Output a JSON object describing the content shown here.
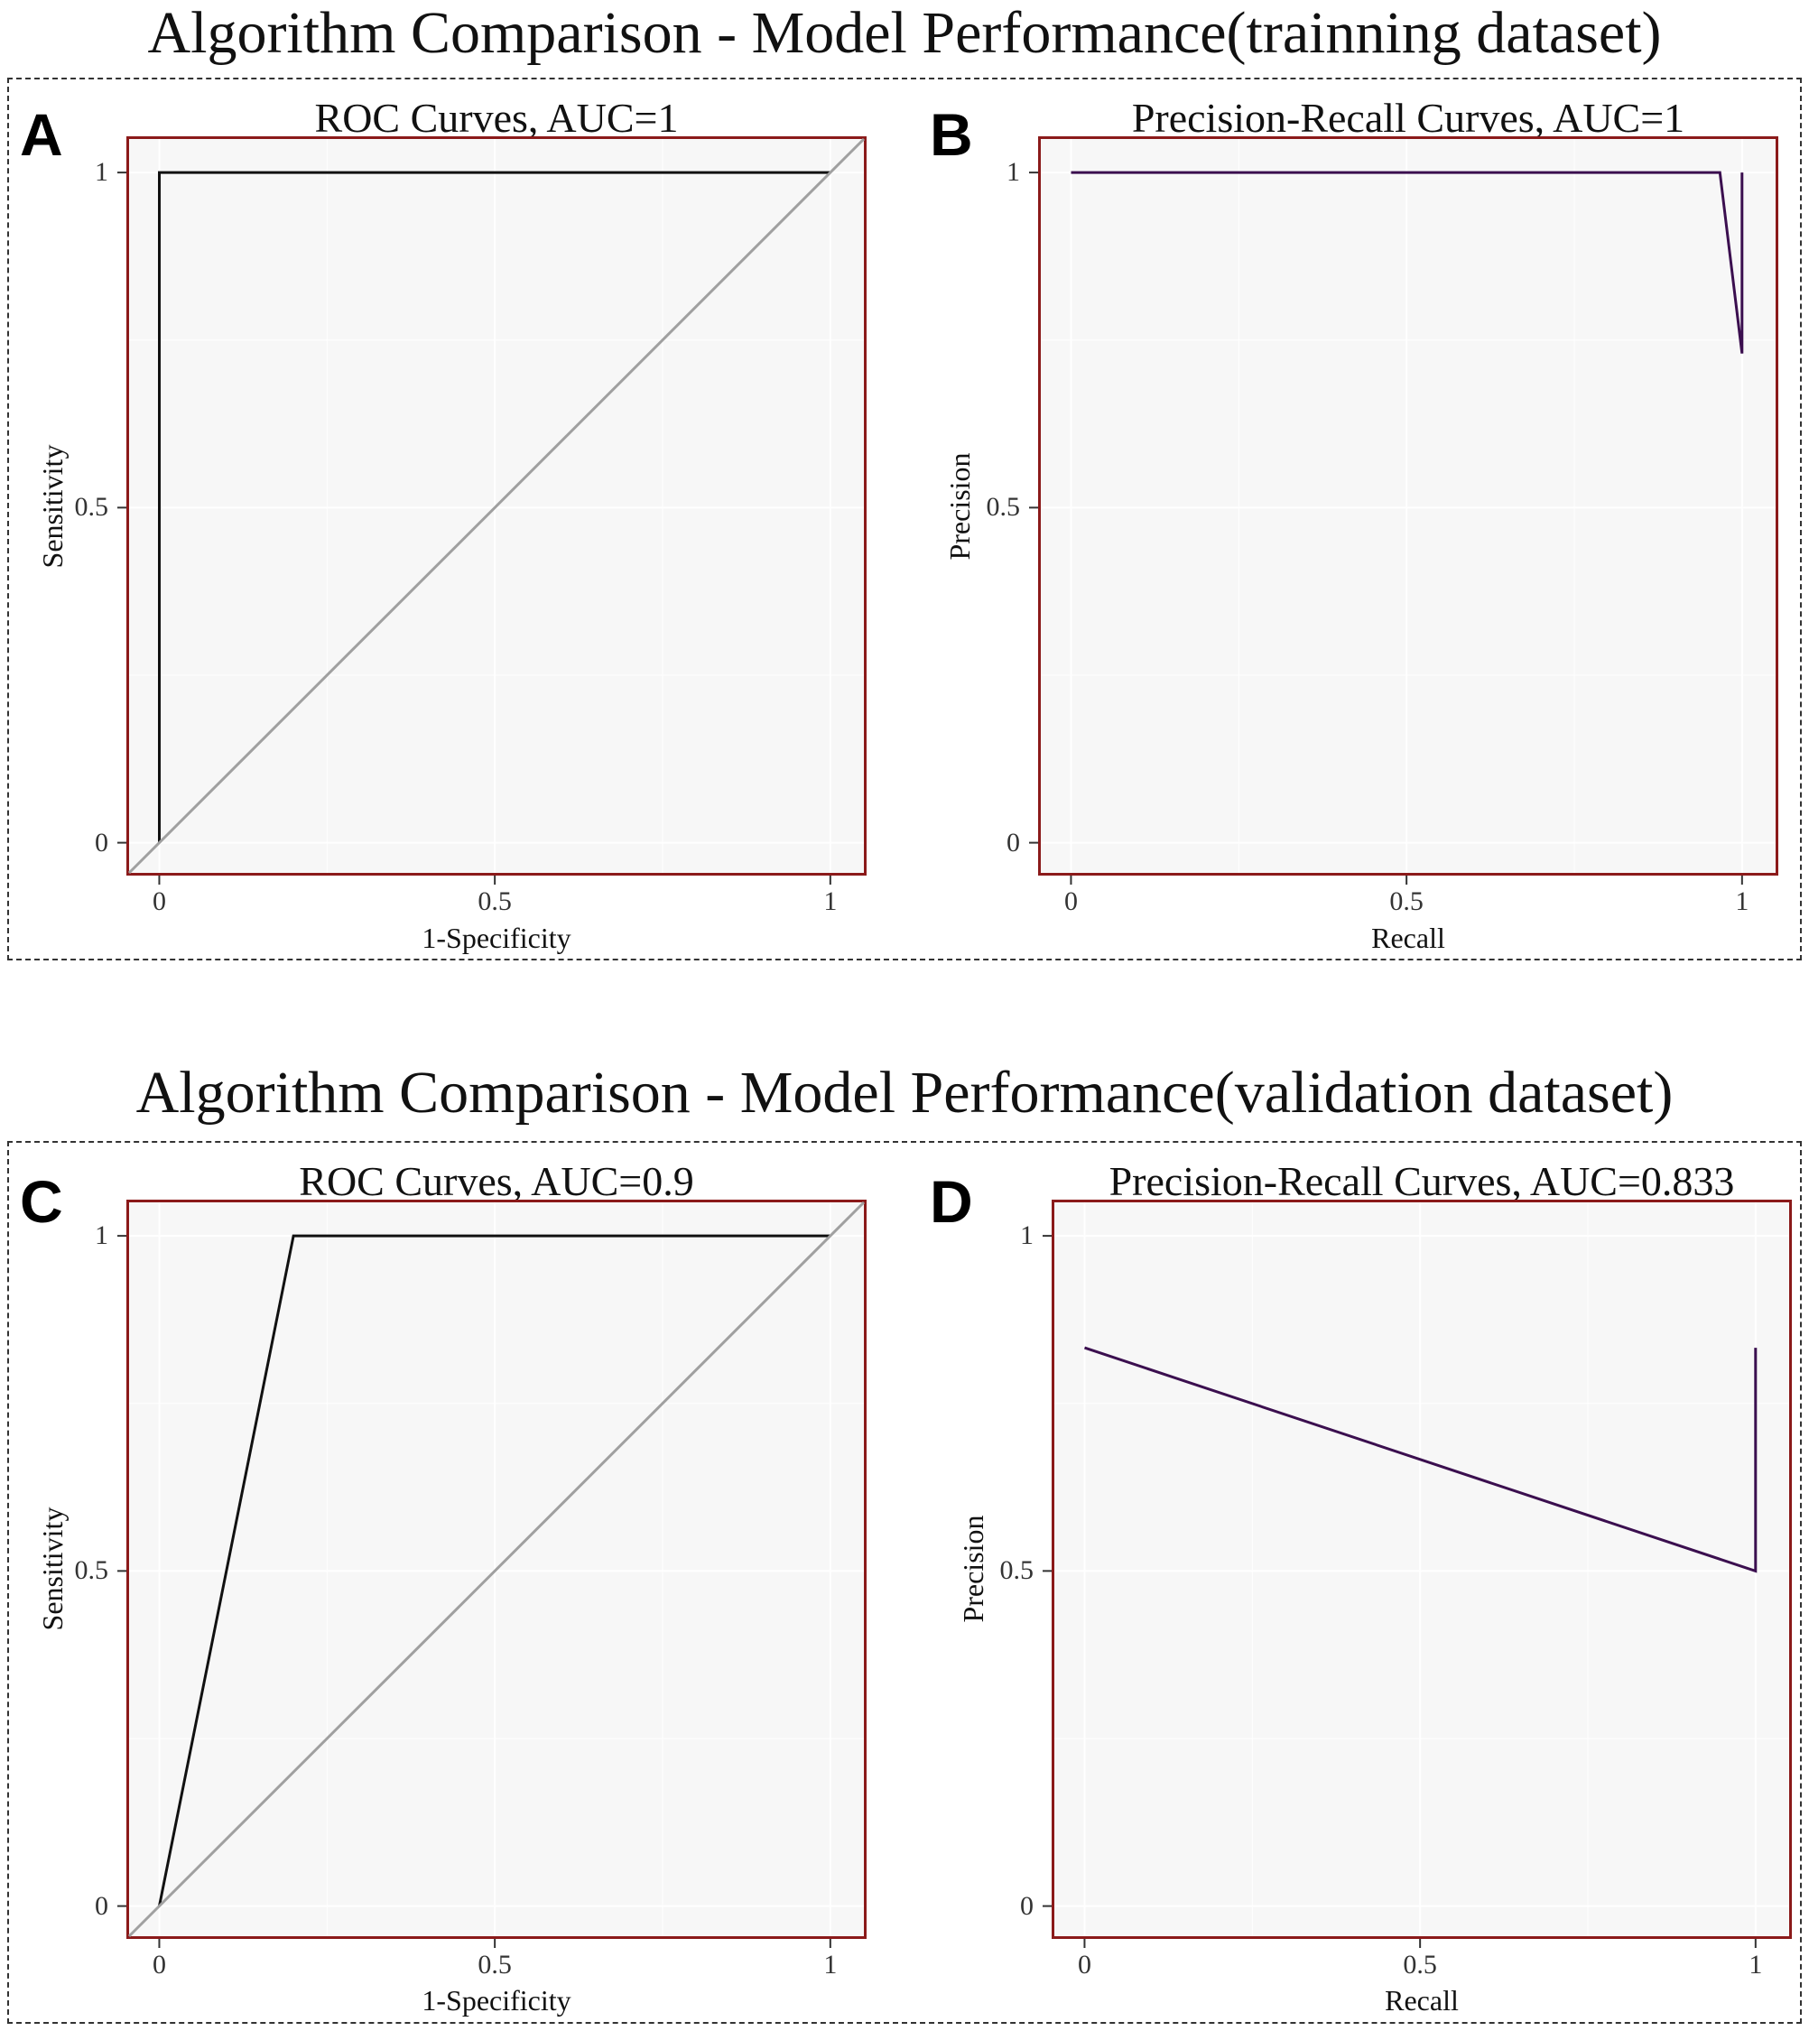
{
  "sections": [
    {
      "title": "Algorithm Comparison - Model Performance(trainning dataset)"
    },
    {
      "title": "Algorithm Comparison - Model Performance(validation dataset)"
    }
  ],
  "chart_data": [
    {
      "panel": "A",
      "type": "line",
      "title": "ROC Curves, AUC=1",
      "xlabel": "1-Specificity",
      "ylabel": "Sensitivity",
      "xlim": [
        -0.045,
        1.05
      ],
      "ylim": [
        -0.045,
        1.05
      ],
      "xticks": [
        "0",
        "0.5",
        "1"
      ],
      "yticks": [
        "0",
        "0.5",
        "1"
      ],
      "series": [
        {
          "color": "#111111",
          "x": [
            0,
            0,
            1
          ],
          "y": [
            0,
            1,
            1
          ]
        },
        {
          "color": "#a0a0a0",
          "x": [
            -0.045,
            1.05
          ],
          "y": [
            -0.045,
            1.05
          ]
        }
      ]
    },
    {
      "panel": "B",
      "type": "line",
      "title": "Precision-Recall Curves, AUC=1",
      "xlabel": "Recall",
      "ylabel": "Precision",
      "xlim": [
        -0.045,
        1.05
      ],
      "ylim": [
        -0.045,
        1.05
      ],
      "xticks": [
        "0",
        "0.5",
        "1"
      ],
      "yticks": [
        "0",
        "0.5",
        "1"
      ],
      "series": [
        {
          "color": "#3b0f4f",
          "x": [
            0,
            0.967,
            1.0,
            1.0
          ],
          "y": [
            1,
            1,
            0.73,
            1
          ]
        }
      ]
    },
    {
      "panel": "C",
      "type": "line",
      "title": "ROC Curves, AUC=0.9",
      "xlabel": "1-Specificity",
      "ylabel": "Sensitivity",
      "xlim": [
        -0.045,
        1.05
      ],
      "ylim": [
        -0.045,
        1.05
      ],
      "xticks": [
        "0",
        "0.5",
        "1"
      ],
      "yticks": [
        "0",
        "0.5",
        "1"
      ],
      "series": [
        {
          "color": "#111111",
          "x": [
            0,
            0.2,
            1
          ],
          "y": [
            0,
            1,
            1
          ]
        },
        {
          "color": "#a0a0a0",
          "x": [
            -0.045,
            1.05
          ],
          "y": [
            -0.045,
            1.05
          ]
        }
      ]
    },
    {
      "panel": "D",
      "type": "line",
      "title": "Precision-Recall Curves, AUC=0.833",
      "xlabel": "Recall",
      "ylabel": "Precision",
      "xlim": [
        -0.045,
        1.05
      ],
      "ylim": [
        -0.045,
        1.05
      ],
      "xticks": [
        "0",
        "0.5",
        "1"
      ],
      "yticks": [
        "0",
        "0.5",
        "1"
      ],
      "series": [
        {
          "color": "#3b0f4f",
          "x": [
            0,
            1.0,
            1.0
          ],
          "y": [
            0.833,
            0.5,
            0.833
          ]
        }
      ]
    }
  ]
}
